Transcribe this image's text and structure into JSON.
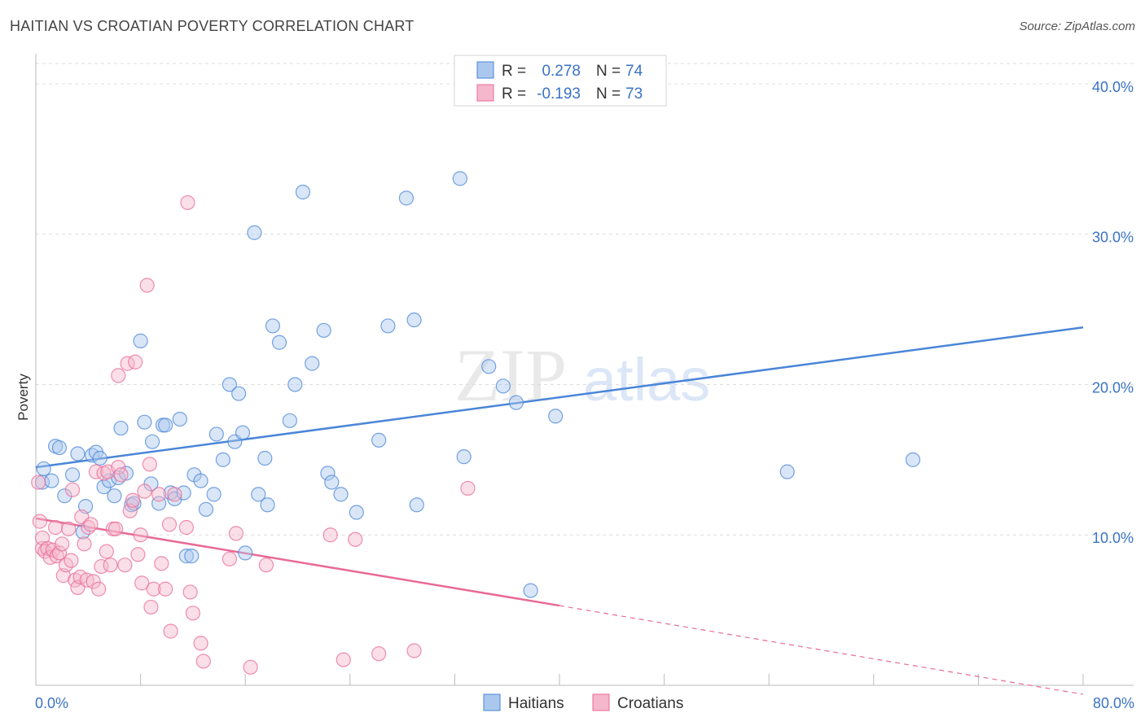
{
  "title": "HAITIAN VS CROATIAN POVERTY CORRELATION CHART",
  "source": "Source: ZipAtlas.com",
  "watermark": {
    "zip": "ZIP",
    "atlas": "atlas"
  },
  "colors": {
    "blue": "#4a86d8",
    "blue_fill": "#aac8ee",
    "pink": "#e96a96",
    "pink_fill": "#f5b7cb",
    "tick_text": "#3b73c4",
    "grid": "#dcdcdc"
  },
  "chart_data": {
    "type": "scatter",
    "title": "HAITIAN VS CROATIAN POVERTY CORRELATION CHART",
    "xlabel": "",
    "ylabel": "Poverty",
    "xlim": [
      0,
      80
    ],
    "ylim": [
      0,
      42
    ],
    "x_tick_labels": [
      "0.0%",
      "80.0%"
    ],
    "y_ticks": [
      10,
      20,
      30,
      40
    ],
    "y_tick_labels": [
      "10.0%",
      "20.0%",
      "30.0%",
      "40.0%"
    ],
    "grid": "horizontal dashed",
    "legend_top": [
      {
        "r_label": "R =",
        "r_value": "0.278",
        "n_label": "N =",
        "n_value": "74"
      },
      {
        "r_label": "R =",
        "r_value": "-0.193",
        "n_label": "N =",
        "n_value": "73"
      }
    ],
    "legend_bottom": [
      "Haitians",
      "Croatians"
    ],
    "series": [
      {
        "name": "Haitians",
        "color": "#4a86d8",
        "trend": {
          "x0": 0,
          "y0": 14.5,
          "x1": 80,
          "y1": 23.8,
          "dashed_from": null
        },
        "points": [
          [
            0.5,
            13.5
          ],
          [
            0.6,
            14.4
          ],
          [
            1.2,
            13.6
          ],
          [
            1.5,
            15.9
          ],
          [
            1.8,
            15.8
          ],
          [
            2.2,
            12.6
          ],
          [
            2.8,
            14.0
          ],
          [
            3.2,
            15.4
          ],
          [
            3.6,
            10.2
          ],
          [
            3.8,
            11.9
          ],
          [
            4.3,
            15.3
          ],
          [
            4.6,
            15.5
          ],
          [
            4.9,
            15.1
          ],
          [
            5.2,
            13.2
          ],
          [
            5.6,
            13.6
          ],
          [
            6.0,
            12.6
          ],
          [
            6.3,
            13.8
          ],
          [
            6.5,
            17.1
          ],
          [
            6.9,
            14.1
          ],
          [
            7.3,
            12.0
          ],
          [
            7.5,
            12.1
          ],
          [
            8.0,
            22.9
          ],
          [
            8.3,
            17.5
          ],
          [
            8.8,
            13.4
          ],
          [
            8.9,
            16.2
          ],
          [
            9.4,
            12.1
          ],
          [
            9.7,
            17.3
          ],
          [
            9.9,
            17.3
          ],
          [
            10.3,
            12.8
          ],
          [
            10.6,
            12.4
          ],
          [
            11.0,
            17.7
          ],
          [
            11.3,
            12.8
          ],
          [
            11.5,
            8.6
          ],
          [
            11.9,
            8.6
          ],
          [
            12.1,
            14.0
          ],
          [
            12.6,
            13.6
          ],
          [
            13.0,
            11.7
          ],
          [
            13.6,
            12.7
          ],
          [
            13.8,
            16.7
          ],
          [
            14.3,
            15.0
          ],
          [
            14.8,
            20.0
          ],
          [
            15.2,
            16.2
          ],
          [
            15.5,
            19.4
          ],
          [
            15.8,
            16.8
          ],
          [
            16.0,
            8.8
          ],
          [
            16.7,
            30.1
          ],
          [
            17.0,
            12.7
          ],
          [
            17.5,
            15.1
          ],
          [
            17.7,
            12.0
          ],
          [
            18.1,
            23.9
          ],
          [
            18.6,
            22.8
          ],
          [
            19.4,
            17.6
          ],
          [
            19.8,
            20.0
          ],
          [
            20.4,
            32.8
          ],
          [
            21.1,
            21.4
          ],
          [
            22.0,
            23.6
          ],
          [
            22.3,
            14.1
          ],
          [
            22.6,
            13.5
          ],
          [
            23.3,
            12.7
          ],
          [
            24.5,
            11.5
          ],
          [
            26.2,
            16.3
          ],
          [
            26.9,
            23.9
          ],
          [
            28.3,
            32.4
          ],
          [
            28.9,
            24.3
          ],
          [
            29.1,
            12.0
          ],
          [
            32.4,
            33.7
          ],
          [
            32.7,
            15.2
          ],
          [
            34.6,
            21.2
          ],
          [
            35.7,
            19.9
          ],
          [
            36.7,
            18.8
          ],
          [
            37.8,
            6.3
          ],
          [
            39.7,
            17.9
          ],
          [
            57.4,
            14.2
          ],
          [
            67.0,
            15.0
          ]
        ]
      },
      {
        "name": "Croatians",
        "color": "#e96a96",
        "trend": {
          "x0": 0,
          "y0": 11.1,
          "x1": 40,
          "y1": 5.3,
          "dashed_to_x": 80,
          "dashed_to_y": -0.6
        },
        "points": [
          [
            0.2,
            13.5
          ],
          [
            0.3,
            10.9
          ],
          [
            0.5,
            9.1
          ],
          [
            0.5,
            9.8
          ],
          [
            0.7,
            8.9
          ],
          [
            0.9,
            9.1
          ],
          [
            1.1,
            8.5
          ],
          [
            1.3,
            9.0
          ],
          [
            1.5,
            10.5
          ],
          [
            1.6,
            8.6
          ],
          [
            1.8,
            8.8
          ],
          [
            2.0,
            9.4
          ],
          [
            2.1,
            7.3
          ],
          [
            2.3,
            8.0
          ],
          [
            2.5,
            10.4
          ],
          [
            2.7,
            8.3
          ],
          [
            2.8,
            13.0
          ],
          [
            3.0,
            7.0
          ],
          [
            3.2,
            6.5
          ],
          [
            3.4,
            7.2
          ],
          [
            3.5,
            11.2
          ],
          [
            3.7,
            9.4
          ],
          [
            3.9,
            7.0
          ],
          [
            4.0,
            10.5
          ],
          [
            4.2,
            10.7
          ],
          [
            4.4,
            6.9
          ],
          [
            4.6,
            14.2
          ],
          [
            4.8,
            6.4
          ],
          [
            5.0,
            7.9
          ],
          [
            5.2,
            14.1
          ],
          [
            5.4,
            8.9
          ],
          [
            5.5,
            14.2
          ],
          [
            5.7,
            8.0
          ],
          [
            5.9,
            10.4
          ],
          [
            6.1,
            10.4
          ],
          [
            6.3,
            14.5
          ],
          [
            6.5,
            14.0
          ],
          [
            6.8,
            8.0
          ],
          [
            7.0,
            21.4
          ],
          [
            7.2,
            11.6
          ],
          [
            7.4,
            12.3
          ],
          [
            7.6,
            21.5
          ],
          [
            7.8,
            8.7
          ],
          [
            8.0,
            10.0
          ],
          [
            8.1,
            6.8
          ],
          [
            8.3,
            12.9
          ],
          [
            8.5,
            26.6
          ],
          [
            8.7,
            14.7
          ],
          [
            8.8,
            5.2
          ],
          [
            9.0,
            6.4
          ],
          [
            9.4,
            12.7
          ],
          [
            9.6,
            8.1
          ],
          [
            9.9,
            6.4
          ],
          [
            10.2,
            10.7
          ],
          [
            10.3,
            3.6
          ],
          [
            10.6,
            12.7
          ],
          [
            11.5,
            10.5
          ],
          [
            11.6,
            32.1
          ],
          [
            11.8,
            6.2
          ],
          [
            12.0,
            4.8
          ],
          [
            12.6,
            2.8
          ],
          [
            12.8,
            1.6
          ],
          [
            14.8,
            8.4
          ],
          [
            15.3,
            10.1
          ],
          [
            16.4,
            1.2
          ],
          [
            17.6,
            8.0
          ],
          [
            22.5,
            10.0
          ],
          [
            23.5,
            1.7
          ],
          [
            24.4,
            9.7
          ],
          [
            26.2,
            2.1
          ],
          [
            28.9,
            2.3
          ],
          [
            33.0,
            13.1
          ],
          [
            6.3,
            20.6
          ]
        ]
      }
    ]
  }
}
